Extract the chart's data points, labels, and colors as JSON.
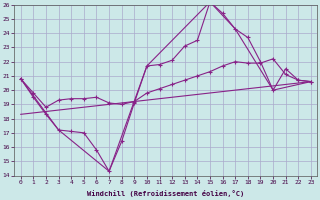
{
  "xlabel": "Windchill (Refroidissement éolien,°C)",
  "background_color": "#cce8e8",
  "grid_color": "#aaaacc",
  "line_color": "#882288",
  "xlim": [
    -0.5,
    23.5
  ],
  "ylim": [
    14,
    26
  ],
  "xticks": [
    0,
    1,
    2,
    3,
    4,
    5,
    6,
    7,
    8,
    9,
    10,
    11,
    12,
    13,
    14,
    15,
    16,
    17,
    18,
    19,
    20,
    21,
    22,
    23
  ],
  "yticks": [
    14,
    15,
    16,
    17,
    18,
    19,
    20,
    21,
    22,
    23,
    24,
    25,
    26
  ],
  "line_zigzag_x": [
    0,
    1,
    2,
    3,
    4,
    5,
    6,
    7,
    8,
    9,
    10,
    11,
    12,
    13,
    14,
    15,
    16,
    17,
    18,
    19,
    20,
    21,
    22,
    23
  ],
  "line_zigzag_y": [
    20.8,
    19.5,
    18.3,
    17.2,
    17.1,
    17.0,
    15.8,
    14.3,
    16.4,
    19.1,
    21.7,
    21.8,
    22.1,
    23.1,
    23.5,
    26.2,
    25.4,
    24.3,
    23.7,
    22.0,
    20.0,
    21.5,
    20.7,
    20.6
  ],
  "line_upper_x": [
    0,
    1,
    2,
    3,
    4,
    5,
    6,
    7,
    8,
    9,
    10,
    11,
    12,
    13,
    14,
    15,
    16,
    17,
    18,
    19,
    20,
    21,
    22,
    23
  ],
  "line_upper_y": [
    20.8,
    19.8,
    18.8,
    19.3,
    19.4,
    19.4,
    19.5,
    19.1,
    19.0,
    19.2,
    19.8,
    20.1,
    20.4,
    20.7,
    21.0,
    21.3,
    21.7,
    22.0,
    21.9,
    21.9,
    22.2,
    21.1,
    20.7,
    20.6
  ],
  "line_diagonal_x": [
    0,
    1,
    2,
    3,
    4,
    5,
    6,
    7,
    8,
    9,
    10,
    11,
    12,
    13,
    14,
    15,
    16,
    17,
    18,
    19,
    20,
    21,
    22,
    23
  ],
  "line_diagonal_y": [
    18.3,
    18.4,
    18.5,
    18.6,
    18.7,
    18.8,
    18.9,
    19.0,
    19.1,
    19.2,
    19.3,
    19.4,
    19.5,
    19.6,
    19.7,
    19.8,
    19.9,
    20.0,
    20.1,
    20.2,
    20.3,
    20.4,
    20.5,
    20.6
  ],
  "line_triangle_x": [
    0,
    3,
    7,
    10,
    15,
    17,
    20,
    23
  ],
  "line_triangle_y": [
    20.8,
    17.2,
    14.3,
    21.7,
    26.2,
    24.3,
    20.0,
    20.6
  ]
}
